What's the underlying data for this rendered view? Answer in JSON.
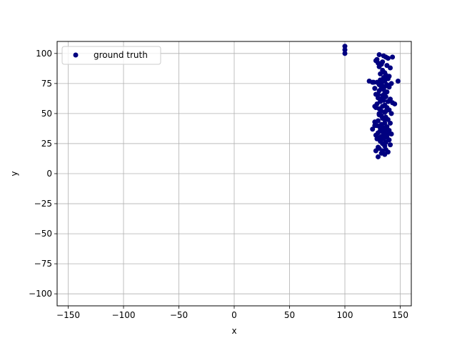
{
  "chart_data": {
    "type": "scatter",
    "title": "",
    "xlabel": "x",
    "ylabel": "y",
    "xlim": [
      -160,
      160
    ],
    "ylim": [
      -110,
      110
    ],
    "xticks": [
      -150,
      -100,
      -50,
      0,
      50,
      100,
      150
    ],
    "xtick_labels": [
      "−150",
      "−100",
      "−50",
      "0",
      "50",
      "100",
      "150"
    ],
    "yticks": [
      -100,
      -75,
      -50,
      -25,
      0,
      25,
      50,
      75,
      100
    ],
    "ytick_labels": [
      "−100",
      "−75",
      "−50",
      "−25",
      "0",
      "25",
      "50",
      "75",
      "100"
    ],
    "grid": true,
    "legend_position": "upper-left",
    "marker_color": "#000080",
    "series": [
      {
        "name": "ground truth",
        "x": [
          100,
          100,
          100,
          131,
          135,
          137,
          139,
          143,
          129,
          128,
          134,
          130,
          133,
          138,
          131,
          141,
          134,
          136,
          132,
          137,
          140,
          135,
          139,
          132,
          136,
          125,
          129,
          142,
          133,
          138,
          131,
          137,
          134,
          140,
          127,
          133,
          135,
          131,
          138,
          136,
          130,
          134,
          148,
          122,
          126,
          137,
          130,
          141,
          135,
          132,
          139,
          143,
          129,
          136,
          134,
          127,
          138,
          131,
          140,
          133,
          145,
          128,
          136,
          142,
          131,
          137,
          134,
          139,
          130,
          127,
          136,
          141,
          133,
          129,
          138,
          132,
          135,
          125,
          140,
          137,
          134,
          130,
          139,
          142,
          128,
          136,
          133,
          131,
          138,
          129,
          135,
          140,
          132,
          137,
          134,
          141,
          136,
          130,
          131,
          137,
          134,
          139,
          128,
          133,
          136,
          130,
          127,
          135,
          138,
          132,
          136,
          133,
          134,
          128,
          137,
          135,
          131
        ],
        "y": [
          106,
          103,
          100,
          99,
          98,
          97,
          96,
          97,
          95,
          94,
          93,
          92,
          91,
          90,
          89,
          88,
          86,
          84,
          83,
          82,
          81,
          80,
          79,
          78,
          77,
          76,
          76,
          75,
          75,
          74,
          74,
          73,
          73,
          72,
          71,
          71,
          70,
          69,
          68,
          67,
          66,
          65,
          77,
          77,
          76,
          64,
          63,
          62,
          61,
          60,
          60,
          59,
          58,
          57,
          56,
          56,
          55,
          54,
          53,
          52,
          58,
          55,
          51,
          50,
          49,
          47,
          46,
          45,
          44,
          43,
          42,
          42,
          41,
          40,
          39,
          38,
          38,
          37,
          36,
          36,
          35,
          34,
          33,
          33,
          32,
          32,
          31,
          30,
          30,
          29,
          29,
          28,
          27,
          26,
          25,
          24,
          23,
          22,
          21,
          20,
          19,
          18,
          19,
          17,
          16,
          14,
          40,
          38,
          35,
          36,
          45,
          48,
          63,
          66,
          52,
          33,
          50
        ]
      }
    ]
  }
}
